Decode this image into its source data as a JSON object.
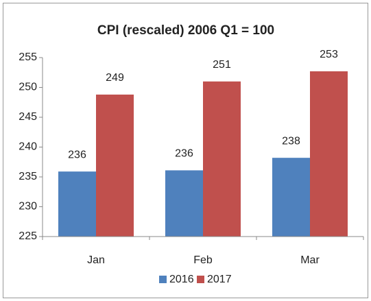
{
  "chart_data": {
    "type": "bar",
    "title": "CPI (rescaled) 2006 Q1 = 100",
    "categories": [
      "Jan",
      "Feb",
      "Mar"
    ],
    "series": [
      {
        "name": "2016",
        "color": "#4f81bd",
        "values": [
          235.9,
          236.1,
          238.2
        ],
        "value_labels": [
          "236",
          "236",
          "238"
        ]
      },
      {
        "name": "2017",
        "color": "#c0504d",
        "values": [
          248.8,
          251.0,
          252.7
        ],
        "value_labels": [
          "249",
          "251",
          "253"
        ]
      }
    ],
    "ylim": [
      225,
      255
    ],
    "yticks": [
      225,
      230,
      235,
      240,
      245,
      250,
      255
    ],
    "grid": false,
    "legend": "bottom"
  }
}
